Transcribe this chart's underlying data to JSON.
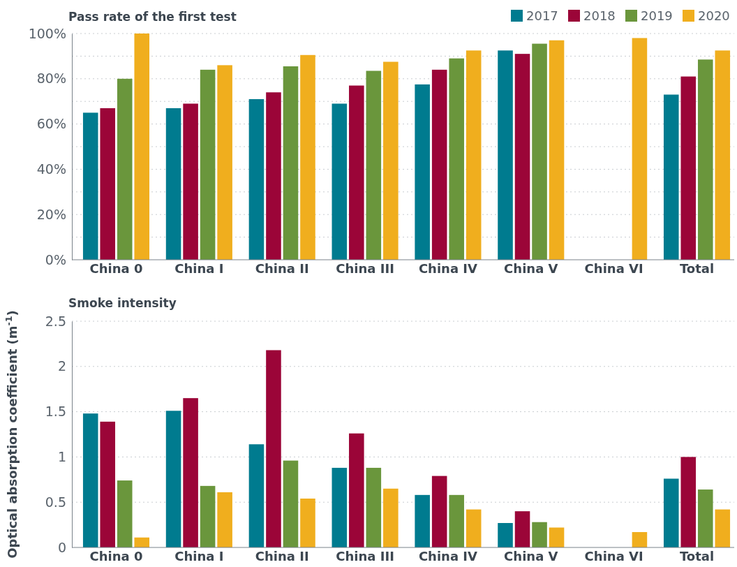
{
  "chart_data": [
    {
      "type": "bar",
      "title": "Pass rate of the first test",
      "categories": [
        "China 0",
        "China I",
        "China II",
        "China III",
        "China IV",
        "China V",
        "China VI",
        "Total"
      ],
      "series": [
        {
          "name": "2017",
          "color": "#007b8f",
          "values": [
            65,
            67,
            71,
            69,
            77.5,
            92.5,
            null,
            73
          ]
        },
        {
          "name": "2018",
          "color": "#9b0538",
          "values": [
            67,
            69,
            74,
            77,
            84,
            91,
            null,
            81
          ]
        },
        {
          "name": "2019",
          "color": "#6a963c",
          "values": [
            80,
            84,
            85.5,
            83.5,
            89,
            95.5,
            null,
            88.5
          ]
        },
        {
          "name": "2020",
          "color": "#f0ae1e",
          "values": [
            100,
            86,
            90.5,
            87.5,
            92.5,
            97,
            98,
            92.5
          ]
        }
      ],
      "ylim": [
        0,
        100
      ],
      "yticks": [
        {
          "value": 0,
          "label": "0%"
        },
        {
          "value": 10,
          "label": null
        },
        {
          "value": 20,
          "label": "20%"
        },
        {
          "value": 30,
          "label": null
        },
        {
          "value": 40,
          "label": "40%"
        },
        {
          "value": 50,
          "label": null
        },
        {
          "value": 60,
          "label": "60%"
        },
        {
          "value": 70,
          "label": null
        },
        {
          "value": 80,
          "label": "80%"
        },
        {
          "value": 90,
          "label": null
        },
        {
          "value": 100,
          "label": "100%"
        }
      ],
      "grid": "y",
      "legend": "top right"
    },
    {
      "type": "bar",
      "title": "Smoke intensity",
      "ylabel": "Optical absorption coefficient (m$^{-1}$)",
      "categories": [
        "China 0",
        "China I",
        "China II",
        "China III",
        "China IV",
        "China V",
        "China VI",
        "Total"
      ],
      "series": [
        {
          "color": "#007b8f",
          "values": [
            1.48,
            1.51,
            1.14,
            0.88,
            0.58,
            0.27,
            null,
            0.76
          ]
        },
        {
          "color": "#9b0538",
          "values": [
            1.39,
            1.65,
            2.18,
            1.26,
            0.79,
            0.4,
            null,
            1.0
          ]
        },
        {
          "color": "#6a963c",
          "values": [
            0.74,
            0.68,
            0.96,
            0.88,
            0.58,
            0.28,
            null,
            0.64
          ]
        },
        {
          "color": "#f0ae1e",
          "values": [
            0.11,
            0.61,
            0.54,
            0.65,
            0.42,
            0.22,
            0.17,
            0.42
          ]
        }
      ],
      "ylim": [
        0,
        2.5
      ],
      "yticks": [
        0,
        0.5,
        1,
        1.5,
        2,
        2.5
      ],
      "grid": "y"
    }
  ]
}
